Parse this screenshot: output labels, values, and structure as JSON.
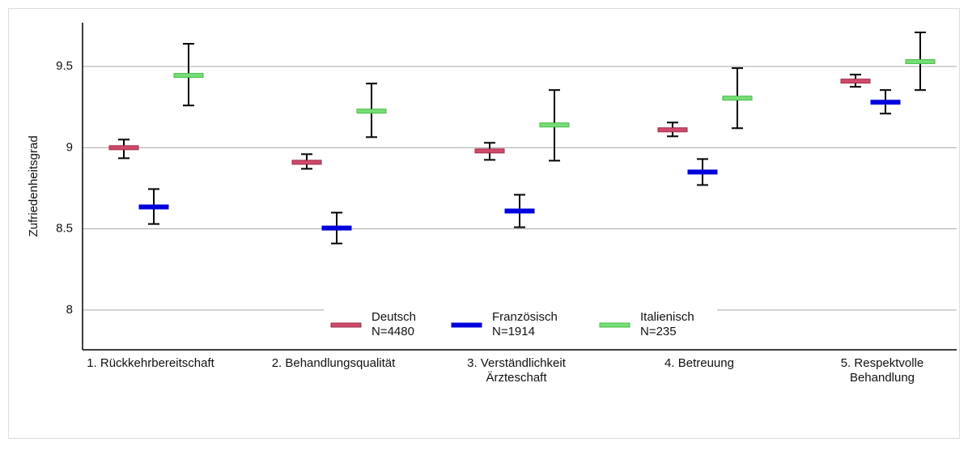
{
  "chart_data": {
    "type": "errorbar",
    "y_label": "Zufriedenheitsgrad",
    "categories": [
      [
        "1. Rückkehrbereitschaft"
      ],
      [
        "2. Behandlungsqualität"
      ],
      [
        "3. Verständlichkeit",
        "Ärzteschaft"
      ],
      [
        "4. Betreuung"
      ],
      [
        "5. Respektvolle",
        "Behandlung"
      ]
    ],
    "series": [
      {
        "name": "Deutsch",
        "n_label": "N=4480",
        "color": "#d04a6a",
        "edge": "#9c2c48",
        "values": [
          9.0,
          8.91,
          8.98,
          9.11,
          9.41
        ],
        "lower": [
          8.935,
          8.87,
          8.925,
          9.07,
          9.375
        ],
        "upper": [
          9.05,
          8.96,
          9.03,
          9.155,
          9.45
        ]
      },
      {
        "name": "Französisch",
        "n_label": "N=1914",
        "color": "#0000dd",
        "edge": "#0000dd",
        "values": [
          8.635,
          8.505,
          8.61,
          8.85,
          9.28
        ],
        "lower": [
          8.53,
          8.41,
          8.51,
          8.77,
          9.21
        ],
        "upper": [
          8.745,
          8.6,
          8.71,
          8.93,
          9.355
        ]
      },
      {
        "name": "Italienisch",
        "n_label": "N=235",
        "color": "#77dd77",
        "edge": "#44bb44",
        "values": [
          9.445,
          9.225,
          9.14,
          9.305,
          9.53
        ],
        "lower": [
          9.26,
          9.065,
          8.92,
          9.12,
          9.355
        ],
        "upper": [
          9.64,
          9.395,
          9.355,
          9.49,
          9.71
        ]
      }
    ],
    "ylim": [
      7.755,
      9.77
    ],
    "yticks": [
      8,
      8.5,
      9,
      9.5
    ],
    "grid": true,
    "legend": "bottom"
  }
}
